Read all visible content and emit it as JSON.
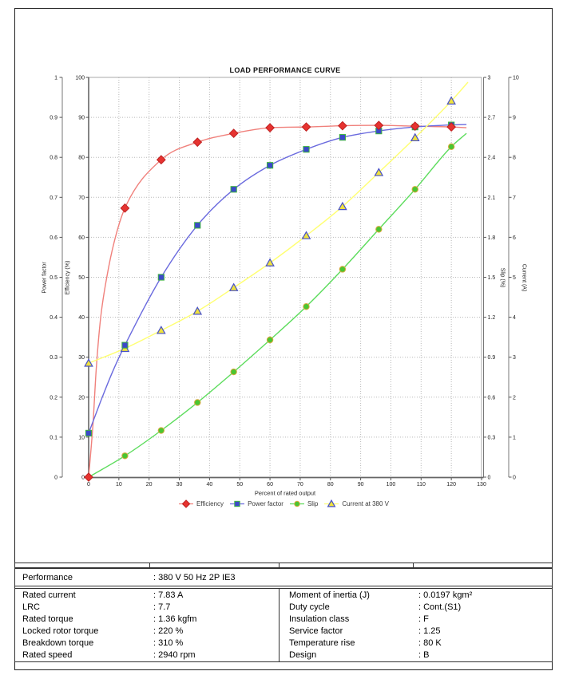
{
  "chart_data": {
    "type": "line",
    "title": "LOAD PERFORMANCE CURVE",
    "xlabel": "Percent of rated output",
    "x_axis": {
      "range": [
        0,
        130
      ],
      "tick_step": 10
    },
    "grid": true,
    "legend_position": "bottom",
    "y_axes": [
      {
        "id": "power_factor",
        "title": "Power factor",
        "side": "left",
        "slot": "outer",
        "range": [
          0,
          1
        ],
        "tick_step": 0.1
      },
      {
        "id": "efficiency",
        "title": "Efficiency (%)",
        "side": "left",
        "slot": "inner",
        "range": [
          0,
          100
        ],
        "tick_step": 10
      },
      {
        "id": "slip",
        "title": "Slip (%)",
        "side": "right",
        "slot": "inner",
        "range": [
          0,
          3
        ],
        "tick_step": 0.3
      },
      {
        "id": "current",
        "title": "Current (A)",
        "side": "right",
        "slot": "outer",
        "range": [
          0,
          10
        ],
        "tick_step": 1
      }
    ],
    "series": [
      {
        "name": "Efficiency",
        "axis": "efficiency",
        "marker": "diamond",
        "line_color": "#f0817c",
        "marker_fill": "#e63330",
        "marker_edge": "#bf2020",
        "x": [
          0,
          12,
          24,
          36,
          48,
          60,
          72,
          84,
          96,
          108,
          120
        ],
        "y": [
          0,
          67.3,
          79.4,
          83.8,
          86.0,
          87.4,
          87.6,
          87.9,
          88.0,
          87.8,
          87.6
        ],
        "curve_x": [
          0,
          1.5,
          2.5,
          4,
          6,
          8.5,
          12,
          24,
          36,
          48,
          60,
          72,
          84,
          96,
          108,
          120,
          125
        ],
        "curve_y": [
          0,
          14,
          27,
          40,
          50,
          59,
          67.3,
          79.4,
          83.8,
          86.0,
          87.4,
          87.6,
          87.9,
          88.0,
          87.8,
          87.6,
          87.4
        ]
      },
      {
        "name": "Power factor",
        "axis": "power_factor",
        "marker": "square",
        "line_color": "#6a6ade",
        "marker_fill": "#3b49c9",
        "marker_edge": "#3eb43e",
        "x": [
          0,
          12,
          24,
          36,
          48,
          60,
          72,
          84,
          96,
          108,
          120
        ],
        "y": [
          0.11,
          0.33,
          0.5,
          0.63,
          0.72,
          0.78,
          0.82,
          0.85,
          0.866,
          0.876,
          0.881
        ],
        "curve_x": [
          0,
          4,
          8,
          12,
          24,
          36,
          48,
          60,
          72,
          84,
          96,
          108,
          120,
          125
        ],
        "curve_y": [
          0.11,
          0.19,
          0.265,
          0.33,
          0.5,
          0.63,
          0.72,
          0.78,
          0.82,
          0.85,
          0.866,
          0.876,
          0.881,
          0.882
        ]
      },
      {
        "name": "Slip",
        "axis": "slip",
        "marker": "circle",
        "line_color": "#5cdc5c",
        "marker_fill": "#49c631",
        "marker_edge": "#dba83e",
        "x": [
          12,
          24,
          36,
          48,
          60,
          72,
          84,
          96,
          108,
          120
        ],
        "y": [
          0.16,
          0.35,
          0.56,
          0.79,
          1.03,
          1.28,
          1.56,
          1.86,
          2.16,
          2.48
        ],
        "curve_x": [
          0,
          12,
          24,
          36,
          48,
          60,
          72,
          84,
          96,
          108,
          120,
          125
        ],
        "curve_y": [
          0,
          0.16,
          0.35,
          0.56,
          0.79,
          1.03,
          1.28,
          1.56,
          1.86,
          2.16,
          2.48,
          2.58
        ]
      },
      {
        "name": "Current at 380 V",
        "axis": "current",
        "marker": "triangle",
        "line_color": "#ffff72",
        "marker_fill": "#efe23e",
        "marker_edge": "#4851c8",
        "x": [
          0,
          12,
          24,
          36,
          48,
          60,
          72,
          84,
          96,
          108,
          120
        ],
        "y": [
          2.85,
          3.22,
          3.67,
          4.15,
          4.74,
          5.36,
          6.04,
          6.77,
          7.62,
          8.49,
          9.41
        ],
        "curve_x": [
          0,
          12,
          24,
          36,
          48,
          60,
          72,
          84,
          96,
          108,
          120,
          125.5
        ],
        "curve_y": [
          2.85,
          3.22,
          3.67,
          4.15,
          4.74,
          5.36,
          6.04,
          6.77,
          7.62,
          8.49,
          9.41,
          9.88
        ]
      }
    ]
  },
  "table": {
    "performance": {
      "label": "Performance",
      "value": ": 380 V 50 Hz 2P IE3"
    },
    "left_rows": [
      {
        "label": "Rated current",
        "value": ": 7.83 A"
      },
      {
        "label": "LRC",
        "value": ": 7.7"
      },
      {
        "label": "Rated torque",
        "value": ": 1.36 kgfm"
      },
      {
        "label": "Locked rotor torque",
        "value": ": 220 %"
      },
      {
        "label": "Breakdown torque",
        "value": ": 310 %"
      },
      {
        "label": "Rated speed",
        "value": ": 2940 rpm"
      }
    ],
    "right_rows": [
      {
        "label": "Moment of inertia (J)",
        "value": ": 0.0197 kgm²"
      },
      {
        "label": "Duty cycle",
        "value": ": Cont.(S1)"
      },
      {
        "label": "Insulation class",
        "value": ": F"
      },
      {
        "label": "Service factor",
        "value": ": 1.25"
      },
      {
        "label": "Temperature rise",
        "value": ": 80 K"
      },
      {
        "label": "Design",
        "value": ": B"
      }
    ]
  }
}
